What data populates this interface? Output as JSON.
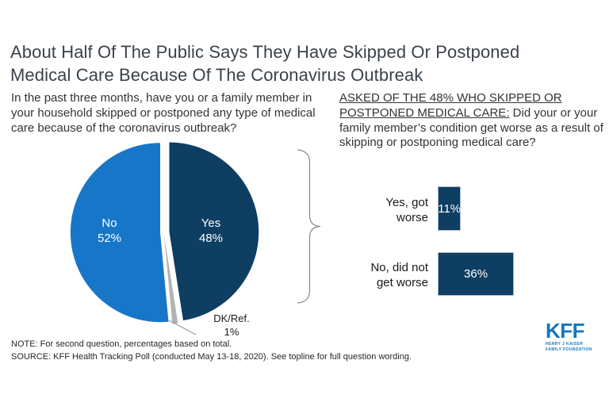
{
  "title": {
    "line1": "About Half Of The Public Says They Have Skipped Or Postponed",
    "line2": "Medical Care Because Of The Coronavirus Outbreak"
  },
  "left_question": "In the past three months, have you or a family member in your household skipped or postponed any type of medical care because of the coronavirus outbreak?",
  "right_question": {
    "underlined": "ASKED OF THE 48% WHO SKIPPED OR POSTPONED MEDICAL CARE:",
    "rest": " Did your or your family member’s condition get worse as a result of skipping or postponing medical care?"
  },
  "chart_data": [
    {
      "type": "pie",
      "title": "In the past three months, have you or a family member in your household skipped or postponed any type of medical care because of the coronavirus outbreak?",
      "slices": [
        {
          "label": "Yes",
          "value": 48,
          "color": "#0e3e62",
          "display": "Yes\n48%"
        },
        {
          "label": "DK/Ref.",
          "value": 1,
          "color": "#b3b3b3",
          "display": "DK/Ref.\n1%"
        },
        {
          "label": "No",
          "value": 52,
          "color": "#1776c8",
          "display": "No\n52%"
        }
      ],
      "legend_position": "inside"
    },
    {
      "type": "bar",
      "title": "Did your or your family member's condition get worse as a result of skipping or postponing medical care?",
      "categories": [
        "Yes, got worse",
        "No, did not get worse"
      ],
      "values": [
        11,
        36
      ],
      "value_labels": [
        "11%",
        "36%"
      ],
      "category_display": [
        "Yes, got\nworse",
        "No, did not\nget worse"
      ],
      "bar_color": "#0e3e62",
      "xlim": [
        0,
        100
      ],
      "grid": false
    }
  ],
  "notes": {
    "note": "NOTE: For second question, percentages based on total.",
    "source": "SOURCE: KFF Health Tracking Poll (conducted May 13-18, 2020). See topline for full question wording."
  },
  "logo": {
    "kff": "KFF",
    "sub_line1": "HENRY J KAISER",
    "sub_line2": "FAMILY FOUNDATION"
  }
}
